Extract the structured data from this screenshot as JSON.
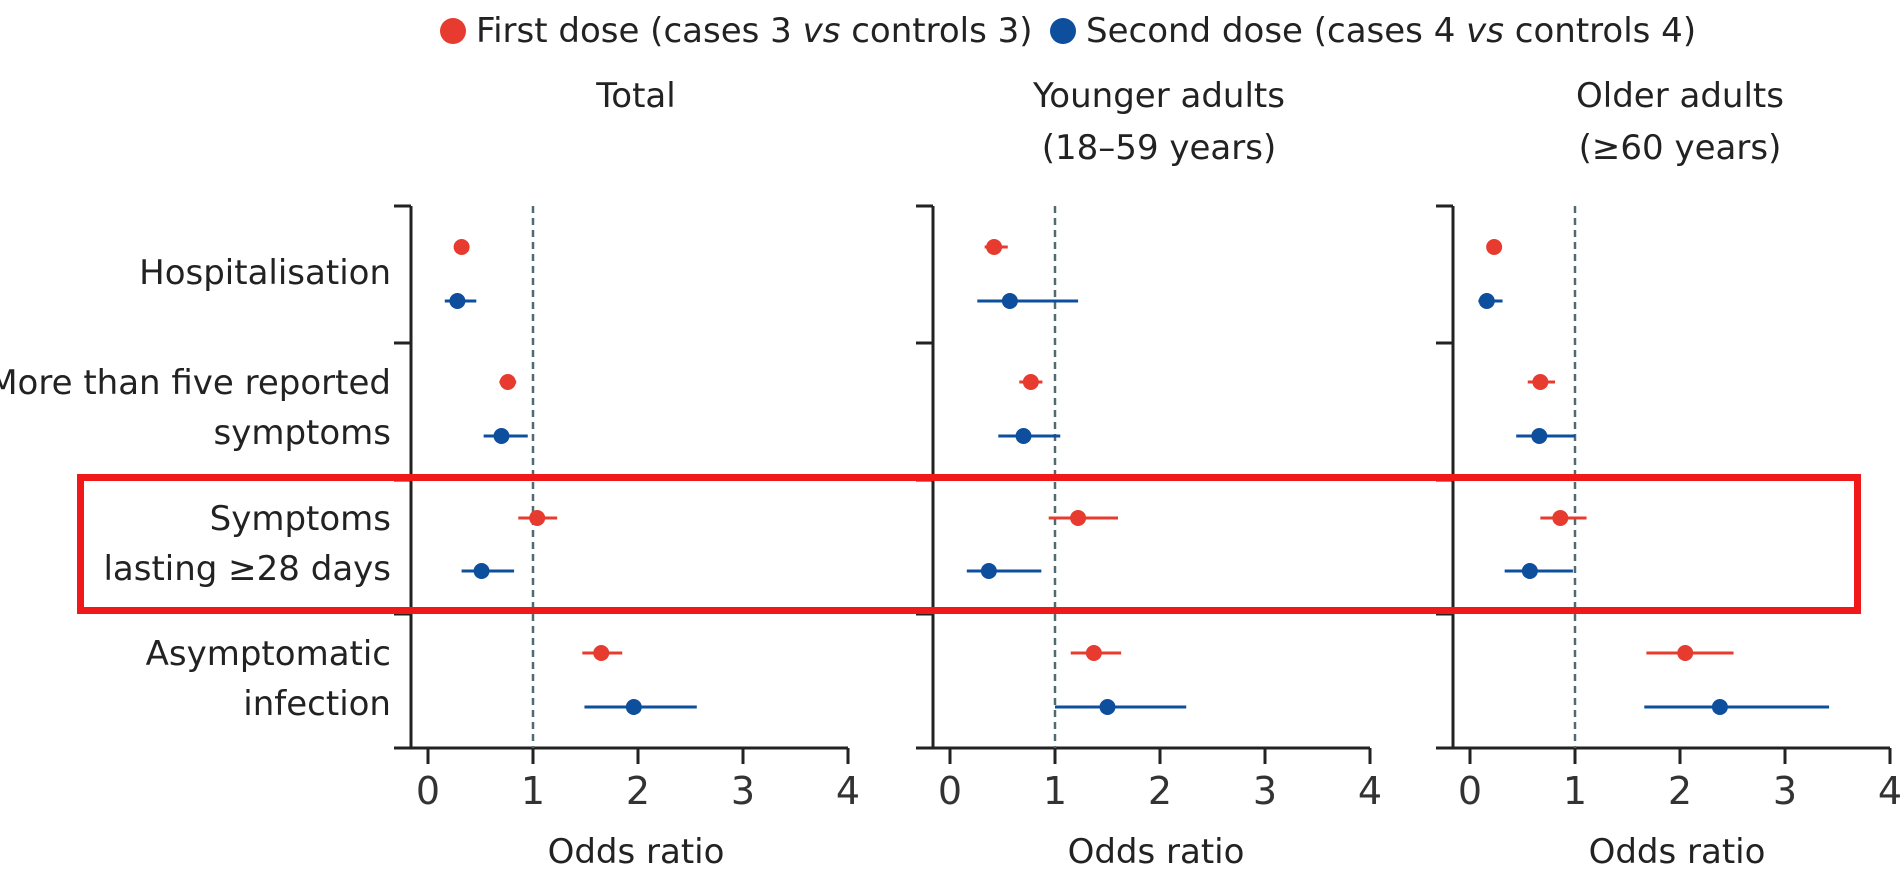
{
  "legend": {
    "first": {
      "pre": "First dose (cases 3 ",
      "vs": "vs",
      "post": " controls 3)",
      "color": "#e63b2e"
    },
    "second": {
      "pre": "Second dose (cases 4 ",
      "vs": "vs",
      "post": " controls 4)",
      "color": "#0d4f9c"
    }
  },
  "panels": [
    {
      "title_line1": "Total",
      "title_line2": "",
      "xlabel": "Odds ratio"
    },
    {
      "title_line1": "Younger adults",
      "title_line2": "(18–59 years)",
      "xlabel": "Odds ratio"
    },
    {
      "title_line1": "Older adults",
      "title_line2": "(≥60 years)",
      "xlabel": "Odds ratio"
    }
  ],
  "categories": [
    {
      "line1": "Hospitalisation",
      "line2": ""
    },
    {
      "line1": "More than five reported",
      "line2": "symptoms"
    },
    {
      "line1": "Symptoms",
      "line2": "lasting ≥28 days"
    },
    {
      "line1": "Asymptomatic",
      "line2": "infection"
    }
  ],
  "chart_data": {
    "type": "scatter",
    "subtype": "forest-plot",
    "xlim": [
      0,
      4
    ],
    "xticks": [
      "0",
      "1",
      "2",
      "3",
      "4"
    ],
    "reference_line": 1,
    "highlighted_category": "Symptoms lasting ≥28 days",
    "series_names": [
      "First dose (cases 3 vs controls 3)",
      "Second dose (cases 4 vs controls 4)"
    ],
    "panels": [
      {
        "name": "Total",
        "first": [
          {
            "or": 0.32,
            "lo": 0.27,
            "hi": 0.38
          },
          {
            "or": 0.76,
            "lo": 0.68,
            "hi": 0.84
          },
          {
            "or": 1.04,
            "lo": 0.86,
            "hi": 1.23
          },
          {
            "or": 1.65,
            "lo": 1.47,
            "hi": 1.85
          }
        ],
        "second": [
          {
            "or": 0.28,
            "lo": 0.16,
            "hi": 0.46
          },
          {
            "or": 0.7,
            "lo": 0.53,
            "hi": 0.95
          },
          {
            "or": 0.51,
            "lo": 0.32,
            "hi": 0.82
          },
          {
            "or": 1.96,
            "lo": 1.49,
            "hi": 2.56
          }
        ]
      },
      {
        "name": "Younger adults (18–59 years)",
        "first": [
          {
            "or": 0.42,
            "lo": 0.33,
            "hi": 0.55
          },
          {
            "or": 0.77,
            "lo": 0.66,
            "hi": 0.88
          },
          {
            "or": 1.22,
            "lo": 0.94,
            "hi": 1.6
          },
          {
            "or": 1.37,
            "lo": 1.15,
            "hi": 1.63
          }
        ],
        "second": [
          {
            "or": 0.57,
            "lo": 0.26,
            "hi": 1.22
          },
          {
            "or": 0.7,
            "lo": 0.46,
            "hi": 1.05
          },
          {
            "or": 0.37,
            "lo": 0.16,
            "hi": 0.87
          },
          {
            "or": 1.5,
            "lo": 1.0,
            "hi": 2.25
          }
        ]
      },
      {
        "name": "Older adults (≥60 years)",
        "first": [
          {
            "or": 0.23,
            "lo": 0.17,
            "hi": 0.3
          },
          {
            "or": 0.67,
            "lo": 0.55,
            "hi": 0.81
          },
          {
            "or": 0.86,
            "lo": 0.67,
            "hi": 1.11
          },
          {
            "or": 2.05,
            "lo": 1.68,
            "hi": 2.51
          }
        ],
        "second": [
          {
            "or": 0.16,
            "lo": 0.08,
            "hi": 0.31
          },
          {
            "or": 0.66,
            "lo": 0.44,
            "hi": 1.0
          },
          {
            "or": 0.57,
            "lo": 0.33,
            "hi": 0.98
          },
          {
            "or": 2.38,
            "lo": 1.66,
            "hi": 3.42
          }
        ]
      }
    ]
  }
}
